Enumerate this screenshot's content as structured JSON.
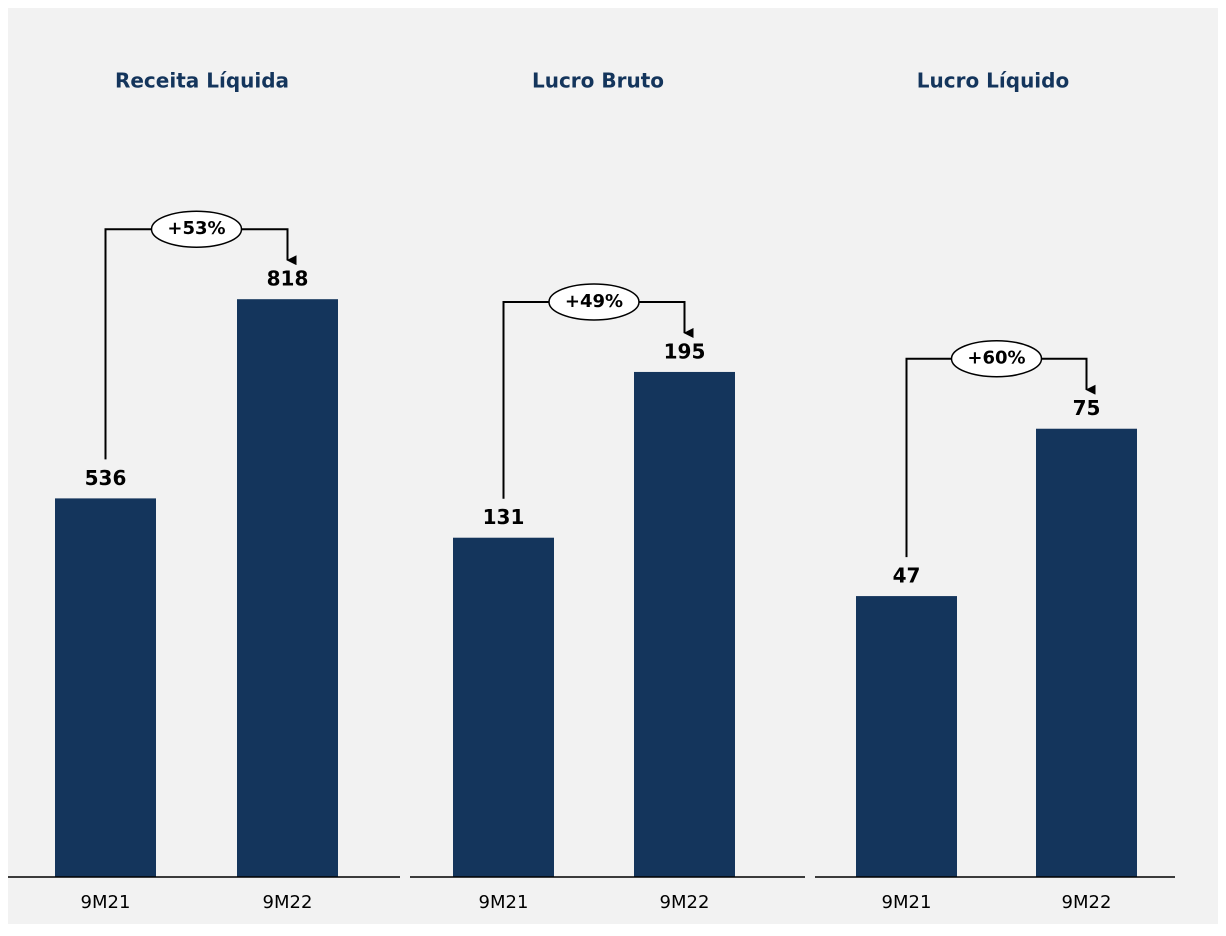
{
  "chart_data": [
    {
      "type": "bar",
      "title": "Receita Líquida",
      "categories": [
        "9M21",
        "9M22"
      ],
      "values": [
        536,
        818
      ],
      "color": "#14355c",
      "ylim": [
        0,
        1100
      ],
      "annotation": "+53%"
    },
    {
      "type": "bar",
      "title": "Lucro Bruto",
      "categories": [
        "9M21",
        "9M22"
      ],
      "values": [
        131,
        195
      ],
      "color": "#14355c",
      "ylim": [
        0,
        300
      ],
      "annotation": "+49%"
    },
    {
      "type": "bar",
      "title": "Lucro Líquido",
      "categories": [
        "9M21",
        "9M22"
      ],
      "values": [
        47,
        75
      ],
      "color": "#14355c",
      "ylim": [
        0,
        130
      ],
      "annotation": "+60%"
    }
  ]
}
